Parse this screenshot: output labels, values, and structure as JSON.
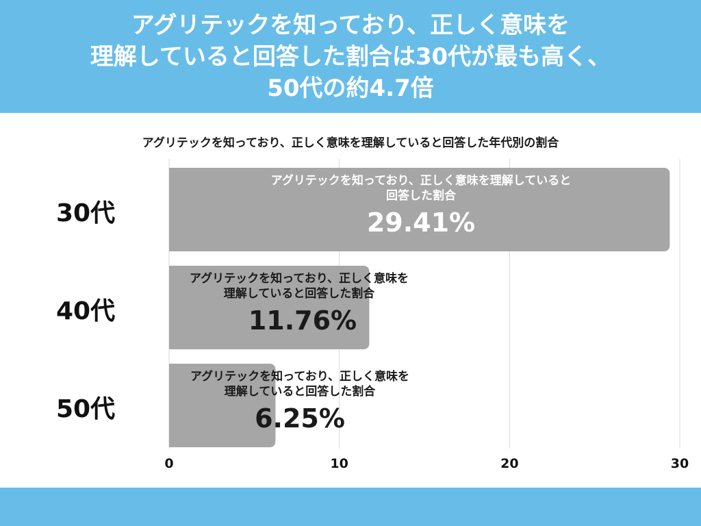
{
  "header": {
    "lines": [
      "アグリテックを知っており、正しく意味を",
      "理解していると回答した割合は30代が最も高く、",
      "50代の約4.7倍"
    ]
  },
  "chart_data": {
    "type": "bar",
    "orientation": "horizontal",
    "title": "アグリテックを知っており、正しく意味を理解していると回答した年代別の割合",
    "categories": [
      "30代",
      "40代",
      "50代"
    ],
    "series": [
      {
        "values": [
          29.41,
          11.76,
          6.25
        ],
        "value_labels": [
          "29.41%",
          "11.76%",
          "6.25%"
        ],
        "caption_lines": [
          [
            "アグリテックを知っており、正しく意味を理解していると",
            "回答した割合"
          ],
          [
            "アグリテックを知っており、正しく意味を",
            "理解していると回答した割合"
          ],
          [
            "アグリテックを知っており、正しく意味を",
            "理解していると回答した割合"
          ]
        ]
      }
    ],
    "xlim": [
      0,
      30
    ],
    "xticks": [
      0,
      10,
      20,
      30
    ],
    "grid": true,
    "colors": {
      "bar": "#a6a6a6",
      "grid": "#d9d9d9",
      "band": "#67bde8"
    }
  }
}
